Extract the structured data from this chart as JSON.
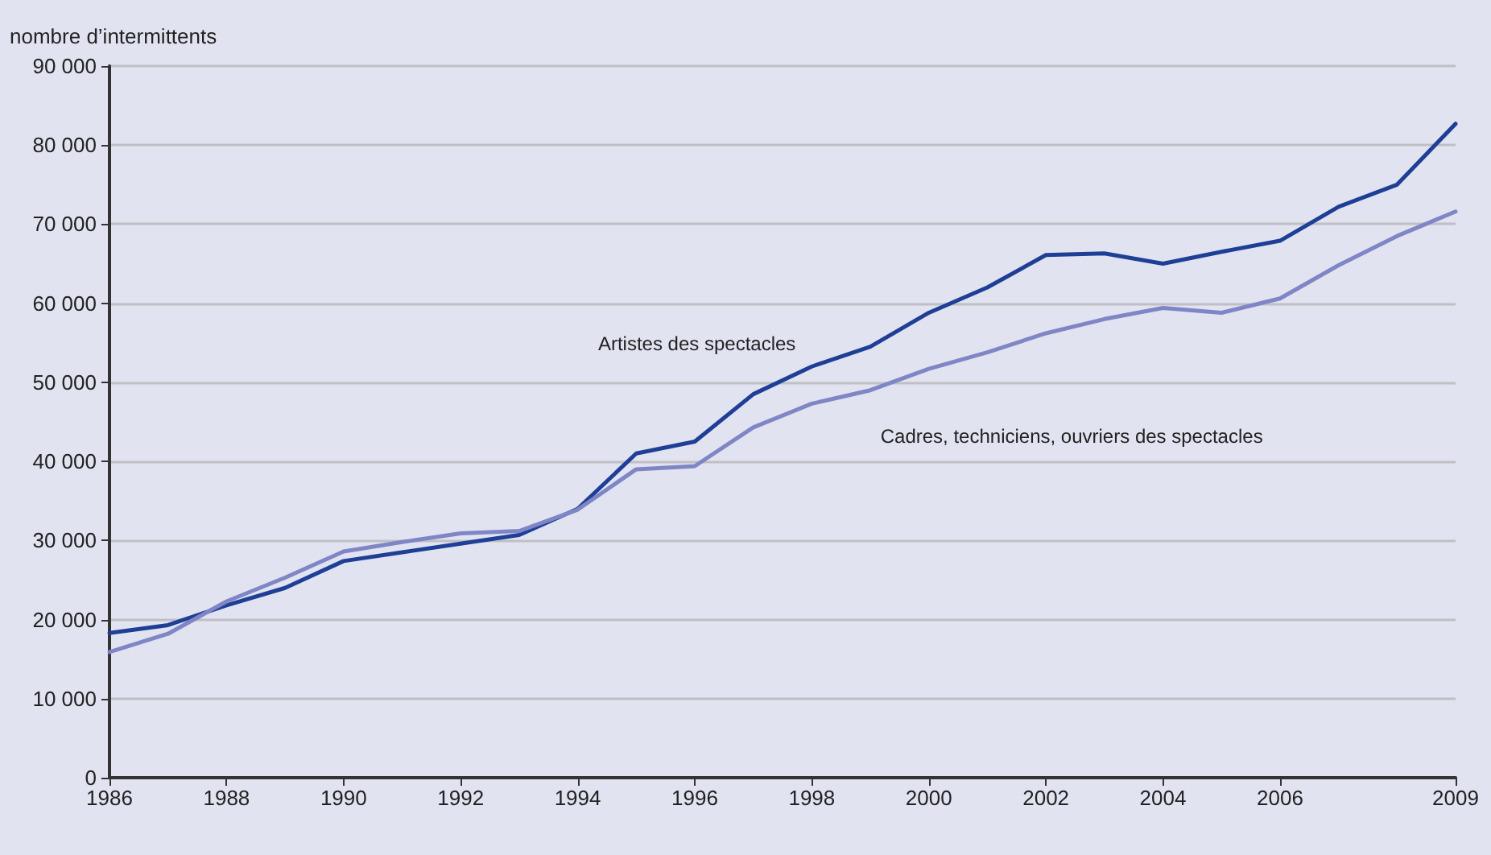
{
  "chart_data": {
    "type": "line",
    "ylabel": "nombre d’intermittents",
    "x": [
      1986,
      1987,
      1988,
      1989,
      1990,
      1991,
      1992,
      1993,
      1994,
      1995,
      1996,
      1997,
      1998,
      1999,
      2000,
      2001,
      2002,
      2003,
      2004,
      2005,
      2006,
      2007,
      2008,
      2009
    ],
    "series": [
      {
        "name": "Artistes des spectacles",
        "color": "#1f3f96",
        "values": [
          18300,
          19300,
          21800,
          24000,
          27400,
          28500,
          29600,
          30700,
          34000,
          41000,
          42500,
          48500,
          52000,
          54500,
          58800,
          62000,
          66100,
          66300,
          65000,
          66500,
          67900,
          72200,
          75000,
          82700
        ]
      },
      {
        "name": "Cadres, techniciens, ouvriers des spectacles",
        "color": "#7f86c5",
        "values": [
          15900,
          18200,
          22300,
          25300,
          28600,
          29800,
          30900,
          31200,
          33900,
          39000,
          39400,
          44300,
          47300,
          49000,
          51700,
          53800,
          56200,
          58000,
          59400,
          58800,
          60600,
          64800,
          68500,
          71600
        ]
      }
    ],
    "xlim": [
      1986,
      2009
    ],
    "xticks": [
      1986,
      1988,
      1990,
      1992,
      1994,
      1996,
      1998,
      2000,
      2002,
      2004,
      2006,
      2009
    ],
    "ylim": [
      0,
      90000
    ],
    "yticks": [
      0,
      {
        "value": 10000,
        "label": "10 000"
      },
      {
        "value": 20000,
        "label": "20 000"
      },
      {
        "value": 30000,
        "label": "30 000"
      },
      {
        "value": 40000,
        "label": "40 000"
      },
      {
        "value": 50000,
        "label": "50 000"
      },
      {
        "value": 60000,
        "label": "60 000"
      },
      {
        "value": 70000,
        "label": "70 000"
      },
      {
        "value": 80000,
        "label": "80 000"
      },
      {
        "value": 90000,
        "label": "90 000"
      }
    ],
    "grid": "y",
    "legend": false,
    "marker": "none",
    "line_style": "solid"
  }
}
